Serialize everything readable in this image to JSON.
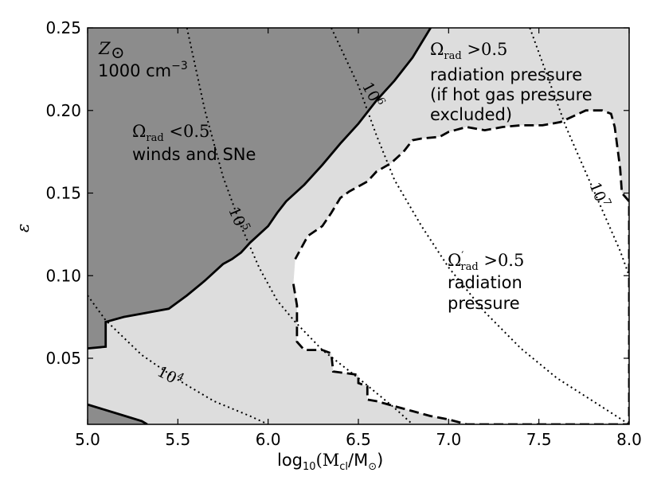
{
  "chart_data": {
    "type": "area",
    "xlabel": "log10(Mcl/M⊙)",
    "ylabel": "ε",
    "xlim": [
      5.0,
      8.0
    ],
    "ylim": [
      0.01,
      0.25
    ],
    "x_ticks": [
      "5.0",
      "5.5",
      "6.0",
      "6.5",
      "7.0",
      "7.5",
      "8.0"
    ],
    "y_ticks": [
      "0.05",
      "0.10",
      "0.15",
      "0.20",
      "0.25"
    ],
    "annotations": {
      "metallicity": "Z⊙",
      "density": "1000 cm⁻³"
    },
    "regions": [
      {
        "name": "winds-sne",
        "label_math": "Ωrad <0.5",
        "label_text": "winds and SNe",
        "color": "#8c8c8c",
        "boundary": [
          [
            5.0,
            0.056
          ],
          [
            5.1,
            0.057
          ],
          [
            5.1,
            0.072
          ],
          [
            5.2,
            0.075
          ],
          [
            5.3,
            0.077
          ],
          [
            5.45,
            0.08
          ],
          [
            5.55,
            0.088
          ],
          [
            5.65,
            0.097
          ],
          [
            5.75,
            0.107
          ],
          [
            5.8,
            0.11
          ],
          [
            5.85,
            0.114
          ],
          [
            5.9,
            0.12
          ],
          [
            6.0,
            0.13
          ],
          [
            6.05,
            0.138
          ],
          [
            6.1,
            0.145
          ],
          [
            6.2,
            0.155
          ],
          [
            6.3,
            0.167
          ],
          [
            6.4,
            0.18
          ],
          [
            6.5,
            0.192
          ],
          [
            6.6,
            0.206
          ],
          [
            6.7,
            0.218
          ],
          [
            6.8,
            0.232
          ],
          [
            6.9,
            0.25
          ]
        ]
      },
      {
        "name": "radiation-pressure-excluded",
        "label_math": "Ωrad >0.5",
        "label_text": [
          "radiation pressure",
          "(if hot gas pressure",
          "excluded)"
        ],
        "color": "#dddddd"
      },
      {
        "name": "radiation-pressure",
        "label_math": "Ω′rad >0.5",
        "label_text": [
          "radiation",
          "pressure"
        ],
        "color": "#ffffff",
        "boundary": [
          [
            6.14,
            0.095
          ],
          [
            6.16,
            0.082
          ],
          [
            6.16,
            0.06
          ],
          [
            6.2,
            0.055
          ],
          [
            6.3,
            0.055
          ],
          [
            6.35,
            0.053
          ],
          [
            6.36,
            0.042
          ],
          [
            6.5,
            0.04
          ],
          [
            6.5,
            0.035
          ],
          [
            6.55,
            0.033
          ],
          [
            6.55,
            0.025
          ],
          [
            6.6,
            0.024
          ],
          [
            6.7,
            0.021
          ],
          [
            6.8,
            0.018
          ],
          [
            6.9,
            0.015
          ],
          [
            7.0,
            0.013
          ],
          [
            7.1,
            0.01
          ],
          [
            8.0,
            0.01
          ],
          [
            8.0,
            0.145
          ],
          [
            7.96,
            0.15
          ],
          [
            7.95,
            0.165
          ],
          [
            7.92,
            0.19
          ],
          [
            7.9,
            0.198
          ],
          [
            7.85,
            0.2
          ],
          [
            7.76,
            0.2
          ],
          [
            7.7,
            0.197
          ],
          [
            7.62,
            0.193
          ],
          [
            7.52,
            0.191
          ],
          [
            7.4,
            0.191
          ],
          [
            7.3,
            0.19
          ],
          [
            7.2,
            0.188
          ],
          [
            7.1,
            0.19
          ],
          [
            7.0,
            0.187
          ],
          [
            6.95,
            0.184
          ],
          [
            6.85,
            0.183
          ],
          [
            6.8,
            0.182
          ],
          [
            6.75,
            0.175
          ],
          [
            6.68,
            0.168
          ],
          [
            6.6,
            0.163
          ],
          [
            6.55,
            0.157
          ],
          [
            6.45,
            0.151
          ],
          [
            6.4,
            0.147
          ],
          [
            6.35,
            0.138
          ],
          [
            6.3,
            0.13
          ],
          [
            6.22,
            0.124
          ],
          [
            6.15,
            0.11
          ]
        ]
      }
    ],
    "bottom_dark_region": [
      [
        5.0,
        0.022
      ],
      [
        5.15,
        0.017
      ],
      [
        5.3,
        0.012
      ],
      [
        5.33,
        0.01
      ],
      [
        5.0,
        0.01
      ]
    ],
    "contours": [
      {
        "label": "10",
        "exponent": "4",
        "points": [
          [
            5.0,
            0.088
          ],
          [
            5.1,
            0.073
          ],
          [
            5.3,
            0.052
          ],
          [
            5.5,
            0.037
          ],
          [
            5.7,
            0.024
          ],
          [
            5.9,
            0.015
          ],
          [
            6.0,
            0.01
          ]
        ]
      },
      {
        "label": "10",
        "exponent": "5",
        "points": [
          [
            5.55,
            0.25
          ],
          [
            5.65,
            0.2
          ],
          [
            5.75,
            0.16
          ],
          [
            5.85,
            0.13
          ],
          [
            5.95,
            0.105
          ],
          [
            6.05,
            0.085
          ],
          [
            6.15,
            0.072
          ],
          [
            6.3,
            0.055
          ],
          [
            6.5,
            0.038
          ],
          [
            6.7,
            0.02
          ],
          [
            6.8,
            0.01
          ]
        ]
      },
      {
        "label": "10",
        "exponent": "6",
        "points": [
          [
            6.35,
            0.25
          ],
          [
            6.5,
            0.215
          ],
          [
            6.6,
            0.185
          ],
          [
            6.7,
            0.158
          ],
          [
            6.85,
            0.13
          ],
          [
            7.0,
            0.105
          ],
          [
            7.2,
            0.078
          ],
          [
            7.4,
            0.056
          ],
          [
            7.6,
            0.038
          ],
          [
            7.8,
            0.024
          ],
          [
            8.0,
            0.01
          ]
        ]
      },
      {
        "label": "10",
        "exponent": "7",
        "points": [
          [
            7.45,
            0.25
          ],
          [
            7.55,
            0.22
          ],
          [
            7.65,
            0.19
          ],
          [
            7.75,
            0.165
          ],
          [
            7.85,
            0.14
          ],
          [
            7.95,
            0.115
          ],
          [
            8.0,
            0.1
          ]
        ]
      }
    ]
  }
}
